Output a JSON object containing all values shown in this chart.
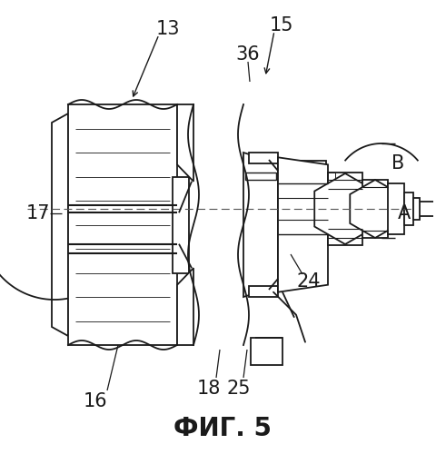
{
  "title": "ФИГ. 5",
  "title_fontsize": 20,
  "title_fontweight": "bold",
  "label_fontsize": 15,
  "bg_color": "#ffffff",
  "line_color": "#1a1a1a",
  "line_width": 1.3
}
